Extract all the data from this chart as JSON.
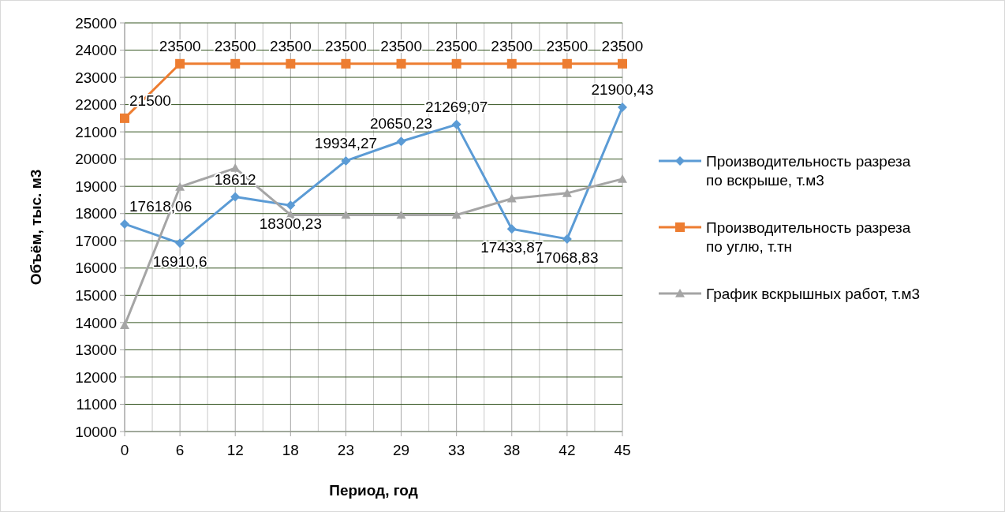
{
  "chart_data": {
    "type": "line",
    "xlabel": "Период, год",
    "ylabel": "Объём, тыс. м3",
    "categories": [
      "0",
      "6",
      "12",
      "18",
      "23",
      "29",
      "33",
      "38",
      "42",
      "45"
    ],
    "series": [
      {
        "name": "Производительность разреза по вскрыше, т.м3",
        "color": "#5b9bd5",
        "marker": "diamond",
        "values": [
          17618.06,
          16910.6,
          18612,
          18300.23,
          19934.27,
          20650.23,
          21269.07,
          17433.87,
          17068.83,
          21900.43
        ],
        "value_labels": [
          "17618,06",
          "16910,6",
          "18612",
          "18300,23",
          "19934,27",
          "20650,23",
          "21269,07",
          "17433,87",
          "17068,83",
          "21900,43"
        ]
      },
      {
        "name": "Производительность разреза по углю, т.тн",
        "color": "#ed7d31",
        "marker": "square",
        "values": [
          21500,
          23500,
          23500,
          23500,
          23500,
          23500,
          23500,
          23500,
          23500,
          23500
        ],
        "value_labels": [
          "21500",
          "23500",
          "23500",
          "23500",
          "23500",
          "23500",
          "23500",
          "23500",
          "23500",
          "23500"
        ]
      },
      {
        "name": "График вскрышных работ, т.м3",
        "color": "#a5a5a5",
        "marker": "triangle",
        "values": [
          13900,
          18980,
          19670,
          17950,
          17950,
          17950,
          17950,
          18550,
          18750,
          19270
        ]
      }
    ],
    "ylim": [
      10000,
      25000
    ],
    "yticks": [
      10000,
      11000,
      12000,
      13000,
      14000,
      15000,
      16000,
      17000,
      18000,
      19000,
      20000,
      21000,
      22000,
      23000,
      24000,
      25000
    ],
    "grid": true,
    "legend": "right"
  }
}
